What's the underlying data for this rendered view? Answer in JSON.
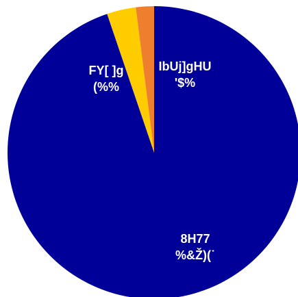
{
  "chart_data": {
    "type": "pie",
    "categories": [
      "8H77",
      "FY[ ]g",
      "IbUj]gHU"
    ],
    "values": [
      94.8,
      3.2,
      2.0
    ],
    "value_labels": [
      "%&Ž)(˙",
      "(%%",
      "'$%"
    ],
    "colors": [
      "#000099",
      "#ffcc00",
      "#ee7f2f"
    ]
  }
}
